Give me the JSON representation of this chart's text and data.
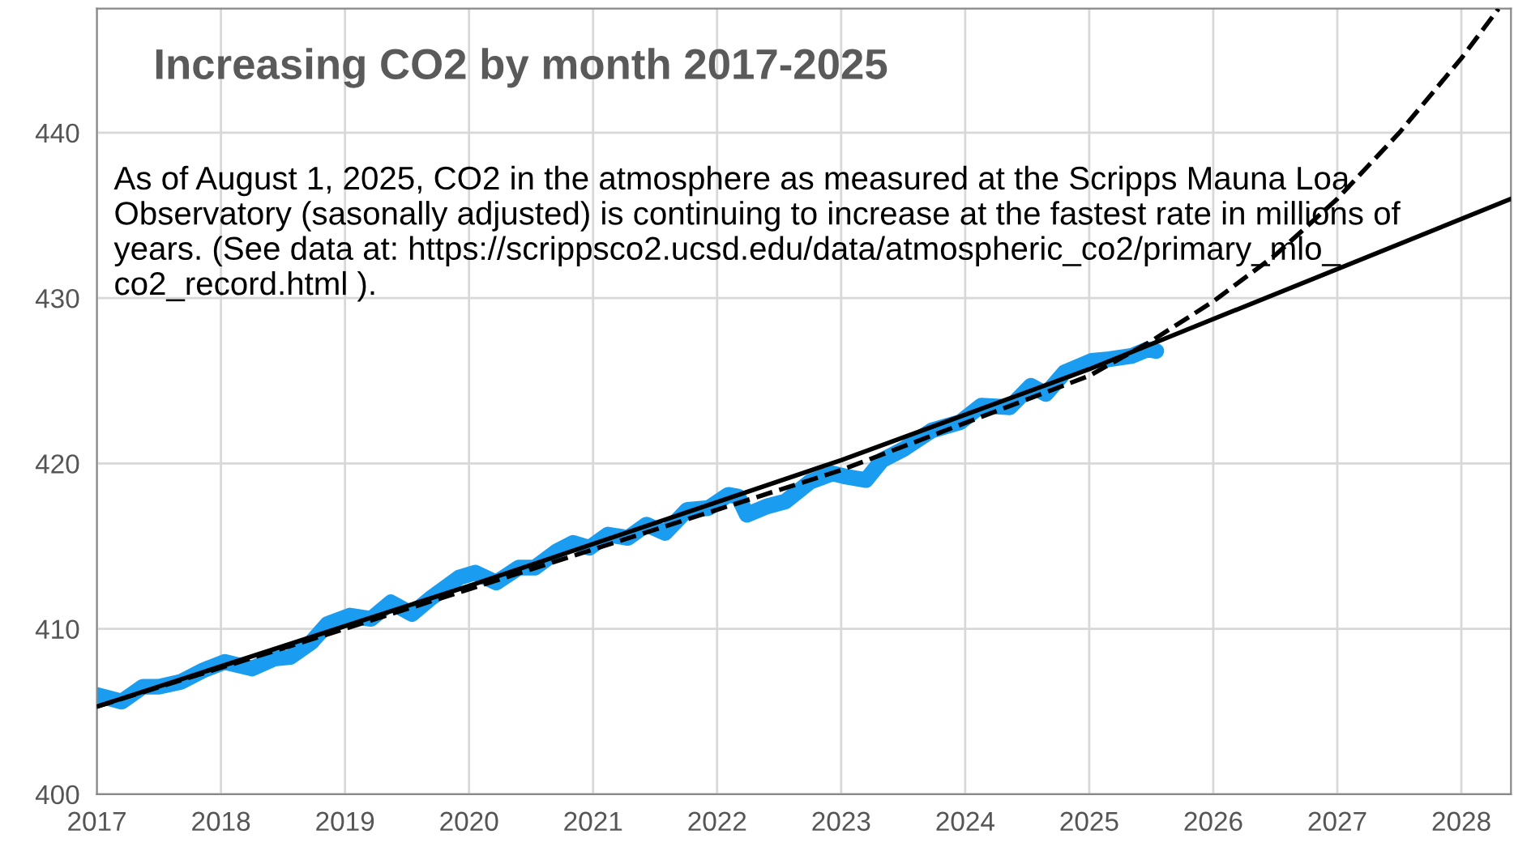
{
  "chart_data": {
    "type": "line",
    "title": "Increasing CO2 by month 2017-2025",
    "annotations": [
      "As of August 1, 2025, CO2 in the atmosphere as measured at the Scripps Mauna Loa Observatory (sasonally adjusted) is continuing to increase at the fastest rate in millions of years. (See data at: https://scrippsco2.ucsd.edu/data/atmospheric_co2/primary_mlo_ co2_record.html )."
    ],
    "series": [
      {
        "color": "#1a9cf0",
        "line_style": "solid",
        "x": [
          2017.0,
          2017.2,
          2017.37,
          2017.5,
          2017.68,
          2017.86,
          2018.03,
          2018.25,
          2018.43,
          2018.56,
          2018.73,
          2018.86,
          2019.04,
          2019.21,
          2019.37,
          2019.54,
          2019.7,
          2019.92,
          2020.05,
          2020.22,
          2020.4,
          2020.53,
          2020.71,
          2020.84,
          2020.97,
          2021.12,
          2021.28,
          2021.43,
          2021.58,
          2021.76,
          2021.93,
          2022.09,
          2022.17,
          2022.24,
          2022.4,
          2022.55,
          2022.75,
          2022.93,
          2023.04,
          2023.2,
          2023.33,
          2023.51,
          2023.73,
          2023.96,
          2024.13,
          2024.36,
          2024.53,
          2024.65,
          2024.8,
          2025.02,
          2025.16,
          2025.34,
          2025.47,
          2025.54
        ],
        "values": [
          406.0,
          405.6,
          406.5,
          406.5,
          406.8,
          407.5,
          408.0,
          407.6,
          408.2,
          408.3,
          409.2,
          410.3,
          410.8,
          410.6,
          411.6,
          410.9,
          411.9,
          413.1,
          413.4,
          412.8,
          413.7,
          413.7,
          414.7,
          415.2,
          414.9,
          415.7,
          415.5,
          416.3,
          415.8,
          417.2,
          417.3,
          418.1,
          418.0,
          416.9,
          417.4,
          417.7,
          418.9,
          419.4,
          419.2,
          419.0,
          420.2,
          420.9,
          422.0,
          422.5,
          423.5,
          423.4,
          424.7,
          424.2,
          425.5,
          426.2,
          426.3,
          426.5,
          426.9,
          426.8
        ]
      },
      {
        "color": "#000000",
        "line_style": "solid",
        "x": [
          2017,
          2020,
          2023,
          2025,
          2028.4
        ],
        "values": [
          405.3,
          412.6,
          420.2,
          425.7,
          436.0
        ]
      },
      {
        "color": "#000000",
        "line_style": "dashed",
        "x": [
          2017,
          2019,
          2021,
          2023,
          2025,
          2025.5,
          2026,
          2026.5,
          2027,
          2027.5,
          2028,
          2028.3
        ],
        "values": [
          405.3,
          410.0,
          414.8,
          419.6,
          425.3,
          427.4,
          429.8,
          432.6,
          436.0,
          440.0,
          444.5,
          447.5
        ]
      }
    ],
    "xlim": [
      2017,
      2028.4
    ],
    "ylim": [
      400,
      447.5
    ],
    "xticks": [
      2017,
      2018,
      2019,
      2020,
      2021,
      2022,
      2023,
      2024,
      2025,
      2026,
      2027,
      2028
    ],
    "yticks": [
      400,
      410,
      420,
      430,
      440
    ],
    "grid": true
  }
}
